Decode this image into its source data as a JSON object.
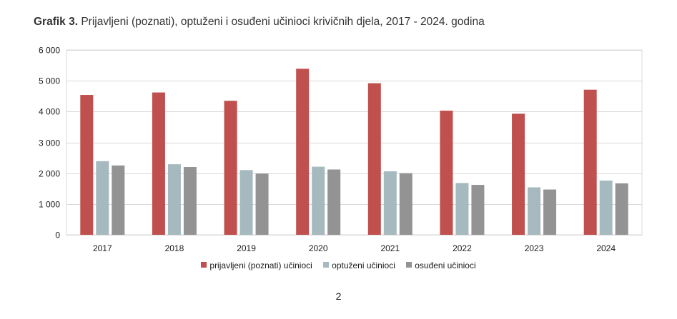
{
  "chart_data": {
    "type": "bar",
    "title_lead": "Grafik 3.",
    "title": "Prijavljeni (poznati), optuženi i osuđeni učinioci krivičnih djela, 2017 - 2024. godina",
    "categories": [
      "2017",
      "2018",
      "2019",
      "2020",
      "2021",
      "2022",
      "2023",
      "2024"
    ],
    "series": [
      {
        "name": "prijavljeni (poznati) učinioci",
        "color": "#c0504d",
        "values": [
          4540,
          4620,
          4350,
          5390,
          4920,
          4030,
          3930,
          4710
        ]
      },
      {
        "name": "optuženi učinioci",
        "color": "#a5b9bf",
        "values": [
          2390,
          2290,
          2100,
          2210,
          2060,
          1680,
          1540,
          1760
        ]
      },
      {
        "name": "osuđeni učinioci",
        "color": "#939393",
        "values": [
          2250,
          2200,
          1990,
          2120,
          2000,
          1620,
          1470,
          1670
        ]
      }
    ],
    "yticks": [
      "0",
      "1 000",
      "2 000",
      "3 000",
      "4 000",
      "5 000",
      "6 000"
    ],
    "ylim": [
      0,
      6000
    ],
    "grid": true,
    "legend_position": "bottom"
  },
  "page_number": "2"
}
